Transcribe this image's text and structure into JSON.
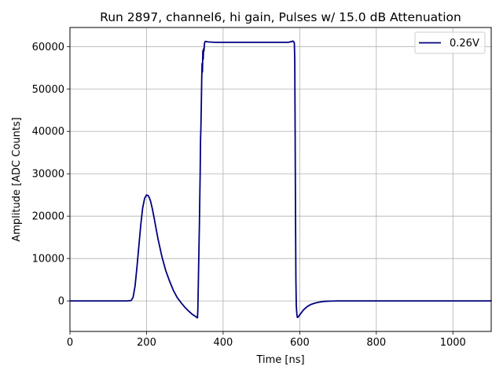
{
  "chart_data": {
    "type": "line",
    "title": "Run 2897, channel6, hi gain, Pulses w/ 15.0 dB Attenuation",
    "xlabel": "Time [ns]",
    "ylabel": "Amplitude [ADC Counts]",
    "xlim": [
      0,
      1100
    ],
    "ylim": [
      -7200,
      64500
    ],
    "xticks": [
      0,
      200,
      400,
      600,
      800,
      1000
    ],
    "yticks": [
      0,
      10000,
      20000,
      30000,
      40000,
      50000,
      60000
    ],
    "grid": true,
    "legend_position": "top-right",
    "colors": {
      "series": "#00007f",
      "grid": "#b0b0b0",
      "axes": "#000000"
    },
    "series": [
      {
        "name": "0.26V",
        "x": [
          0,
          100,
          150,
          160,
          165,
          170,
          175,
          180,
          185,
          190,
          195,
          200,
          205,
          210,
          215,
          220,
          225,
          230,
          240,
          250,
          260,
          270,
          280,
          290,
          300,
          310,
          320,
          330,
          333,
          334,
          336,
          338,
          340,
          341,
          342,
          343,
          344,
          345,
          346,
          347,
          348,
          349,
          350,
          351,
          352,
          353,
          354,
          356,
          360,
          380,
          400,
          450,
          500,
          550,
          570,
          580,
          582,
          584,
          586,
          587,
          588,
          589,
          590,
          591,
          592,
          593,
          594,
          596,
          600,
          605,
          610,
          620,
          630,
          640,
          650,
          660,
          670,
          680,
          690,
          700,
          720,
          800,
          900,
          1000,
          1100
        ],
        "y": [
          0,
          0,
          0,
          100,
          900,
          3500,
          8000,
          13000,
          18000,
          22000,
          24200,
          25000,
          24800,
          23700,
          21800,
          19500,
          17000,
          14600,
          10500,
          7200,
          4700,
          2500,
          800,
          -400,
          -1500,
          -2400,
          -3200,
          -3800,
          -4000,
          -2000,
          8000,
          18000,
          30000,
          38000,
          41000,
          46000,
          52000,
          56000,
          54000,
          59000,
          57000,
          59500,
          59000,
          60500,
          61000,
          61200,
          61200,
          61200,
          61100,
          61000,
          61000,
          61000,
          61000,
          61000,
          61000,
          61200,
          61300,
          61200,
          60800,
          57000,
          40000,
          20000,
          5000,
          -1000,
          -2500,
          -3500,
          -3900,
          -3800,
          -3300,
          -2700,
          -2100,
          -1300,
          -800,
          -500,
          -300,
          -150,
          -80,
          -40,
          -20,
          0,
          0,
          0,
          0,
          0,
          0
        ]
      }
    ]
  }
}
